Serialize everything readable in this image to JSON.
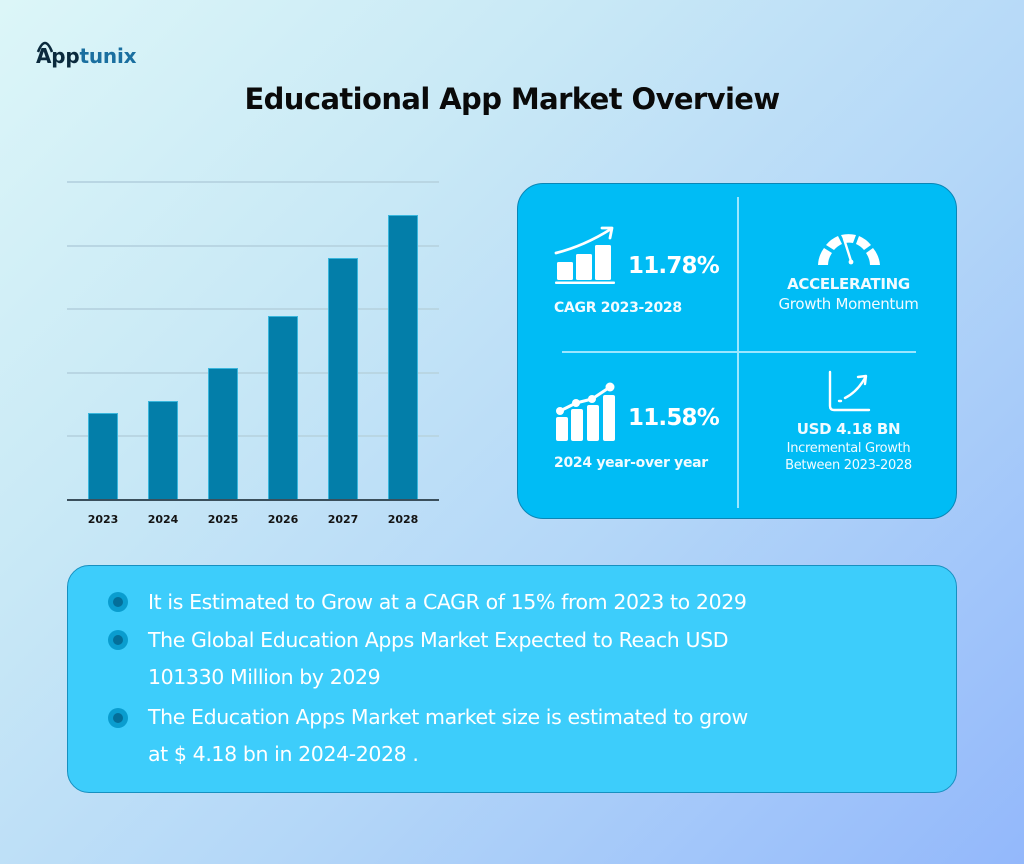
{
  "brand": {
    "logo_part1": "App",
    "logo_part2": "tunix",
    "colors": {
      "dark": "#0b2a3d",
      "accent": "#1a6fa0"
    }
  },
  "header": {
    "title": "Educational App Market Overview"
  },
  "chart_data": {
    "type": "bar",
    "title": "",
    "xlabel": "",
    "ylabel": "",
    "categories": [
      "2023",
      "2024",
      "2025",
      "2026",
      "2027",
      "2028"
    ],
    "values": [
      1.37,
      1.56,
      2.08,
      2.89,
      3.8,
      4.48
    ],
    "value_units": "relative gridline units (no y-axis labels shown)",
    "ylim": [
      0,
      5
    ],
    "gridlines": 5,
    "grid": true,
    "legend": null,
    "bar_color": "#037ea9"
  },
  "stats": {
    "cagr": {
      "value": "11.78%",
      "label": "CAGR 2023-2028",
      "icon": "bar-chart-up-arrow-icon"
    },
    "momentum": {
      "headline": "ACCELERATING",
      "label": "Growth Momentum",
      "icon": "speedometer-icon"
    },
    "yoy": {
      "value": "11.58%",
      "label": "2024 year-over year",
      "icon": "bar-chart-line-icon"
    },
    "incremental": {
      "value": "USD 4.18 BN",
      "label_line1": "Incremental Growth",
      "label_line2": "Between 2023-2028",
      "icon": "growth-curve-icon"
    },
    "colors": {
      "panel": "#00bcf5",
      "border": "#0a86b6"
    }
  },
  "highlights": {
    "items": [
      {
        "line1": "It is Estimated to Grow at a CAGR of 15% from 2023 to 2029",
        "line2": ""
      },
      {
        "line1": "The Global Education Apps Market Expected to Reach USD",
        "line2": "101330 Million by 2029"
      },
      {
        "line1": "The Education Apps Market market size is estimated to grow",
        "line2": "at $ 4.18 bn in 2024-2028 ."
      }
    ],
    "colors": {
      "panel": "#3dcdfb"
    }
  }
}
